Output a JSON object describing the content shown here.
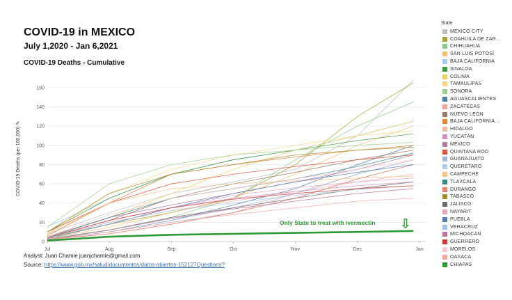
{
  "header": {
    "title": "COVID-19 in MEXICO",
    "subtitle": "July 1,2020 - Jan 6,2021",
    "chart_title": "COVID-19 Deaths - Cumulative"
  },
  "footer": {
    "analyst": "Analyst: Juan Chamie  juanjchamie@gmail.com",
    "source_label": "Source: ",
    "source_link": "https://www.gob.mx/salud/documentos/datos-abiertos-152127",
    "questions_link": "Questions?"
  },
  "chart_data": {
    "type": "line",
    "title": "COVID-19 Deaths - Cumulative",
    "xlabel": "",
    "ylabel": "COVID-19 Deaths (per 100,000) ✎",
    "x_ticks": [
      "Jul",
      "Aug",
      "Sep",
      "Oct",
      "Nov",
      "Dec",
      "Jan"
    ],
    "x_months": [
      0,
      1,
      2,
      3,
      4,
      5,
      6
    ],
    "y_ticks": [
      0,
      20,
      40,
      60,
      80,
      100,
      120,
      140,
      160
    ],
    "ylim": [
      0,
      170
    ],
    "xlim": [
      0,
      6.1
    ],
    "x_unit": "months since Jul 1, 2020",
    "grid": "horizontal",
    "legend_title": "State",
    "legend_position": "right",
    "annotation": {
      "text": "Only State to treat with ivermectin",
      "symbol": "⇩",
      "color": "#2e9a35"
    },
    "highlight_series": "CHIAPAS",
    "series": [
      {
        "name": "MEXICO CITY",
        "color": "#bdbdbd",
        "x": [
          0,
          1,
          2,
          3,
          4,
          5,
          5.9
        ],
        "values": [
          8,
          30,
          50,
          62,
          75,
          110,
          168
        ]
      },
      {
        "name": "COAHUILA DE ZAR...",
        "color": "#a8a33b",
        "x": [
          0,
          1,
          2,
          3,
          4,
          5,
          5.9
        ],
        "values": [
          4,
          18,
          30,
          45,
          80,
          130,
          165
        ]
      },
      {
        "name": "CHIHUAHUA",
        "color": "#8cc98a",
        "x": [
          0,
          1,
          2,
          3,
          4,
          5,
          5.9
        ],
        "values": [
          3,
          12,
          25,
          45,
          85,
          120,
          145
        ]
      },
      {
        "name": "SAN LUIS POTOSÍ",
        "color": "#f0c27a",
        "x": [
          0,
          1,
          2,
          3,
          4,
          5,
          5.9
        ],
        "values": [
          3,
          15,
          30,
          45,
          70,
          100,
          120
        ]
      },
      {
        "name": "BAJA CALIFORNIA",
        "color": "#a7c7e3",
        "x": [
          0,
          1,
          2,
          3,
          4,
          5,
          5.9
        ],
        "values": [
          15,
          45,
          70,
          85,
          95,
          110,
          125
        ]
      },
      {
        "name": "SINALOA",
        "color": "#3f9a3f",
        "x": [
          0,
          1,
          2,
          3,
          4,
          5,
          5.9
        ],
        "values": [
          10,
          45,
          70,
          85,
          95,
          105,
          112
        ]
      },
      {
        "name": "COLIMA",
        "color": "#e9d46b",
        "x": [
          0,
          1,
          2,
          3,
          4,
          5,
          5.9
        ],
        "values": [
          5,
          25,
          50,
          75,
          95,
          110,
          125
        ]
      },
      {
        "name": "TAMAULIPAS",
        "color": "#f5d88a",
        "x": [
          0,
          1,
          2,
          3,
          4,
          5,
          5.9
        ],
        "values": [
          8,
          50,
          75,
          90,
          100,
          110,
          115
        ]
      },
      {
        "name": "SONORA",
        "color": "#9ccf8f",
        "x": [
          0,
          1,
          2,
          3,
          4,
          5,
          5.9
        ],
        "values": [
          15,
          60,
          80,
          90,
          95,
          100,
          103
        ]
      },
      {
        "name": "AGUASCALIENTES",
        "color": "#4f79a8",
        "x": [
          0,
          1,
          2,
          3,
          4,
          5,
          5.9
        ],
        "values": [
          2,
          10,
          22,
          38,
          55,
          80,
          100
        ]
      },
      {
        "name": "ZACATECAS",
        "color": "#f2a3a3",
        "x": [
          0,
          1,
          2,
          3,
          4,
          5,
          5.9
        ],
        "values": [
          2,
          8,
          18,
          30,
          50,
          70,
          85
        ]
      },
      {
        "name": "NUEVO LEÓN",
        "color": "#9e7a68",
        "x": [
          0,
          1,
          2,
          3,
          4,
          5,
          5.9
        ],
        "values": [
          4,
          22,
          45,
          60,
          72,
          85,
          95
        ]
      },
      {
        "name": "BAJA CALIFORNIA...",
        "color": "#e0843c",
        "x": [
          0,
          1,
          2,
          3,
          4,
          5,
          5.9
        ],
        "values": [
          6,
          40,
          70,
          80,
          88,
          95,
          100
        ]
      },
      {
        "name": "HIDALGO",
        "color": "#f4b6b0",
        "x": [
          0,
          1,
          2,
          3,
          4,
          5,
          5.9
        ],
        "values": [
          4,
          20,
          32,
          42,
          52,
          62,
          70
        ]
      },
      {
        "name": "YUCATÁN",
        "color": "#d58ec3",
        "x": [
          0,
          1,
          2,
          3,
          4,
          5,
          5.9
        ],
        "values": [
          4,
          22,
          35,
          45,
          52,
          58,
          62
        ]
      },
      {
        "name": "MÉXICO",
        "color": "#b07aa1",
        "x": [
          0,
          1,
          2,
          3,
          4,
          5,
          5.9
        ],
        "values": [
          5,
          25,
          38,
          50,
          62,
          75,
          90
        ]
      },
      {
        "name": "QUINTANA ROO",
        "color": "#d9523c",
        "x": [
          0,
          1,
          2,
          3,
          4,
          5,
          5.9
        ],
        "values": [
          10,
          40,
          60,
          70,
          78,
          85,
          90
        ]
      },
      {
        "name": "GUANAJUATO",
        "color": "#9dbadb",
        "x": [
          0,
          1,
          2,
          3,
          4,
          5,
          5.9
        ],
        "values": [
          2,
          10,
          22,
          35,
          50,
          70,
          85
        ]
      },
      {
        "name": "QUERÉTARO",
        "color": "#b6cde5",
        "x": [
          0,
          1,
          2,
          3,
          4,
          5,
          5.9
        ],
        "values": [
          2,
          10,
          20,
          30,
          45,
          65,
          80
        ]
      },
      {
        "name": "CAMPECHE",
        "color": "#f2c48d",
        "x": [
          0,
          1,
          2,
          3,
          4,
          5,
          5.9
        ],
        "values": [
          8,
          40,
          55,
          60,
          63,
          66,
          68
        ]
      },
      {
        "name": "TLAXCALA",
        "color": "#3b8a8a",
        "x": [
          0,
          1,
          2,
          3,
          4,
          5,
          5.9
        ],
        "values": [
          4,
          25,
          45,
          55,
          65,
          78,
          92
        ]
      },
      {
        "name": "DURANGO",
        "color": "#e8836c",
        "x": [
          0,
          1,
          2,
          3,
          4,
          5,
          5.9
        ],
        "values": [
          2,
          8,
          18,
          30,
          45,
          65,
          80
        ]
      },
      {
        "name": "TABASCO",
        "color": "#a68d2e",
        "x": [
          0,
          1,
          2,
          3,
          4,
          5,
          5.9
        ],
        "values": [
          10,
          50,
          70,
          80,
          90,
          95,
          98
        ]
      },
      {
        "name": "JALISCO",
        "color": "#6b6b6b",
        "x": [
          0,
          1,
          2,
          3,
          4,
          5,
          5.9
        ],
        "values": [
          2,
          12,
          25,
          35,
          45,
          55,
          62
        ]
      },
      {
        "name": "NAYARIT",
        "color": "#e2a6c4",
        "x": [
          0,
          1,
          2,
          3,
          4,
          5,
          5.9
        ],
        "values": [
          3,
          18,
          35,
          48,
          56,
          62,
          66
        ]
      },
      {
        "name": "PUEBLA",
        "color": "#5a7fb5",
        "x": [
          0,
          1,
          2,
          3,
          4,
          5,
          5.9
        ],
        "values": [
          3,
          18,
          35,
          50,
          62,
          72,
          80
        ]
      },
      {
        "name": "VERACRUZ",
        "color": "#a3c4e2",
        "x": [
          0,
          1,
          2,
          3,
          4,
          5,
          5.9
        ],
        "values": [
          4,
          20,
          32,
          40,
          48,
          54,
          58
        ]
      },
      {
        "name": "MICHOACÁN",
        "color": "#b9759b",
        "x": [
          0,
          1,
          2,
          3,
          4,
          5,
          5.9
        ],
        "values": [
          2,
          12,
          24,
          34,
          42,
          50,
          55
        ]
      },
      {
        "name": "GUERRERO",
        "color": "#d03b35",
        "x": [
          0,
          1,
          2,
          3,
          4,
          5,
          5.9
        ],
        "values": [
          4,
          22,
          35,
          44,
          50,
          55,
          58
        ]
      },
      {
        "name": "MORELOS",
        "color": "#f6c9cc",
        "x": [
          0,
          1,
          2,
          3,
          4,
          5,
          5.9
        ],
        "values": [
          5,
          28,
          45,
          55,
          65,
          75,
          85
        ]
      },
      {
        "name": "OAXACA",
        "color": "#f4a6a6",
        "x": [
          0,
          1,
          2,
          3,
          4,
          5,
          5.9
        ],
        "values": [
          2,
          10,
          20,
          28,
          35,
          42,
          45
        ]
      },
      {
        "name": "CHIAPAS",
        "color": "#2e9a35",
        "x": [
          0,
          1,
          2,
          3,
          4,
          5,
          5.9
        ],
        "values": [
          1,
          5,
          7,
          8,
          9,
          10,
          11
        ]
      }
    ]
  }
}
